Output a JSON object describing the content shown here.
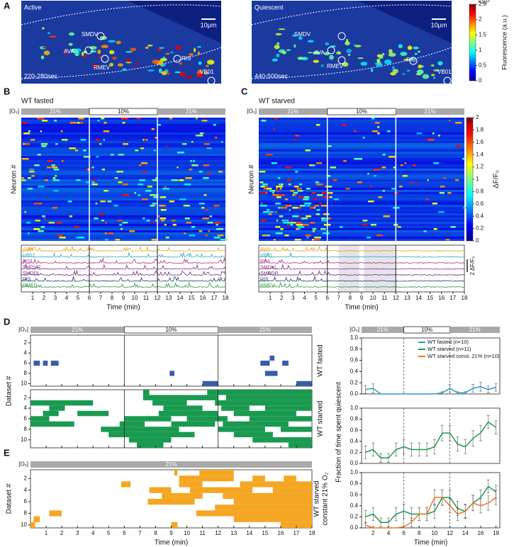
{
  "panel_a": {
    "label": "A",
    "images": [
      {
        "state": "Active",
        "time": "220-280sec",
        "scale": "10μm",
        "neurons": [
          "SMDV",
          "AVA",
          "RMEV",
          "RIS",
          "VB01"
        ]
      },
      {
        "state": "Quiescent",
        "time": "440-500sec",
        "scale": "10μm",
        "neurons": [
          "SMDV",
          "AVA",
          "RMEV",
          "RIS",
          "VB01"
        ]
      }
    ],
    "colorbar": {
      "multiplier": "×10⁴",
      "label": "Fluorescence (a.u.)",
      "lim": [
        0,
        2.5
      ],
      "ticks": [
        0,
        0.5,
        1,
        1.5,
        2,
        2.5
      ]
    }
  },
  "panel_b": {
    "label": "B",
    "title": "WT fasted",
    "o2_label": "[O₂]",
    "o2_segments": [
      {
        "label": "21%",
        "start": 0,
        "end": 6
      },
      {
        "label": "10%",
        "start": 6,
        "end": 12
      },
      {
        "label": "21%",
        "start": 12,
        "end": 18
      }
    ],
    "ylabel": "Neuron #",
    "xlabel": "Time (min)",
    "xlim": [
      0,
      18
    ],
    "xticks": [
      1,
      2,
      3,
      4,
      5,
      6,
      7,
      8,
      9,
      10,
      11,
      12,
      13,
      14,
      15,
      16,
      17,
      18
    ],
    "traces": [
      {
        "name": "AVAL",
        "color": "#e8a21c"
      },
      {
        "name": "VB02",
        "color": "#2aa9c4"
      },
      {
        "name": "RIVL",
        "color": "#b0307c"
      },
      {
        "name": "SMDVR",
        "color": "#8c2a8c"
      },
      {
        "name": "SMDDL",
        "color": "#6a2f7c"
      },
      {
        "name": "RIS",
        "color": "#23397a"
      },
      {
        "name": "RMED",
        "color": "#2a9a40"
      }
    ]
  },
  "panel_c": {
    "label": "C",
    "title": "WT starved",
    "o2_label": "[O₂]",
    "o2_segments": [
      {
        "label": "21%",
        "start": 0,
        "end": 6
      },
      {
        "label": "10%",
        "start": 6,
        "end": 12
      },
      {
        "label": "21%",
        "start": 12,
        "end": 18
      }
    ],
    "ylabel": "Neuron #",
    "xlabel": "Time (min)",
    "xlim": [
      0,
      18
    ],
    "xticks": [
      1,
      2,
      3,
      4,
      5,
      6,
      7,
      8,
      9,
      10,
      11,
      12,
      13,
      14,
      15,
      16,
      17,
      18
    ],
    "traces": [
      {
        "name": "AVAL",
        "color": "#e8a21c"
      },
      {
        "name": "VB01",
        "color": "#2aa9c4"
      },
      {
        "name": "RIVL",
        "color": "#b0307c"
      },
      {
        "name": "SMDVL",
        "color": "#8c2a8c"
      },
      {
        "name": "SMDDR",
        "color": "#6a2f7c"
      },
      {
        "name": "RIS",
        "color": "#23397a"
      },
      {
        "name": "RMEV",
        "color": "#2a9a40"
      }
    ],
    "scale_label": "2 ΔF/F₀",
    "colorbar": {
      "label": "ΔF/F₀",
      "lim": [
        0,
        2
      ],
      "ticks": [
        0,
        0.2,
        0.4,
        0.6,
        0.8,
        1,
        1.2,
        1.4,
        1.6,
        1.8,
        2
      ]
    }
  },
  "panel_d": {
    "label": "D",
    "o2_label": "[O₂]",
    "o2_segments": [
      {
        "label": "21%",
        "start": 0,
        "end": 6
      },
      {
        "label": "10%",
        "start": 6,
        "end": 12
      },
      {
        "label": "21%",
        "start": 12,
        "end": 18
      }
    ],
    "ylabel": "Dataset #",
    "xlim": [
      0,
      18
    ],
    "yticks": [
      2,
      4,
      6,
      8,
      10
    ],
    "fasted": {
      "label": "WT fasted",
      "color": "#3a5daa",
      "ylim": [
        0.5,
        10.5
      ],
      "blocks": [
        [
          6,
          0.2,
          0.6
        ],
        [
          6,
          0.8,
          1.1
        ],
        [
          6,
          1.3,
          1.8
        ],
        [
          8,
          8.9,
          9.2
        ],
        [
          10,
          11,
          12
        ],
        [
          5,
          15.3,
          15.6
        ],
        [
          6,
          14.7,
          15.3
        ],
        [
          6,
          16.1,
          16.5
        ],
        [
          8,
          15,
          15.8
        ],
        [
          10,
          17,
          18
        ]
      ]
    },
    "starved": {
      "label": "WT starved",
      "color": "#1a9a50",
      "ylim": [
        0.5,
        11.5
      ],
      "blocks": [
        [
          1,
          7.2,
          7.6
        ],
        [
          1,
          11.3,
          18
        ],
        [
          2,
          7.2,
          12
        ],
        [
          2,
          12.5,
          18
        ],
        [
          3,
          0,
          4
        ],
        [
          3,
          7.8,
          10
        ],
        [
          3,
          11.8,
          18
        ],
        [
          4,
          1.2,
          2.2
        ],
        [
          4,
          8.5,
          11
        ],
        [
          4,
          12.2,
          14
        ],
        [
          4,
          15,
          18
        ],
        [
          5,
          0.8,
          1.8
        ],
        [
          5,
          3,
          5
        ],
        [
          5,
          8.2,
          12
        ],
        [
          5,
          13,
          17
        ],
        [
          6,
          0,
          1.2
        ],
        [
          6,
          6,
          9
        ],
        [
          6,
          10,
          12.6
        ],
        [
          6,
          14,
          18
        ],
        [
          7,
          0,
          2.8
        ],
        [
          7,
          5.7,
          7.3
        ],
        [
          7,
          9,
          11.8
        ],
        [
          7,
          12.3,
          16.5
        ],
        [
          8,
          4.5,
          9.5
        ],
        [
          8,
          12,
          15
        ],
        [
          8,
          16,
          18
        ],
        [
          9,
          5,
          10.5
        ],
        [
          9,
          13,
          15.5
        ],
        [
          10,
          6.3,
          9
        ],
        [
          10,
          14.2,
          18
        ],
        [
          11,
          6.8,
          8.5
        ],
        [
          11,
          16.5,
          18
        ]
      ]
    }
  },
  "panel_e": {
    "label": "E",
    "o2_label": "[O₂]",
    "o2_segments": [
      {
        "label": "21%",
        "start": 0,
        "end": 18
      }
    ],
    "ylabel": "Dataset #",
    "xlabel": "Time (min)",
    "xlim": [
      0,
      18
    ],
    "ylim": [
      0.5,
      10.5
    ],
    "xticks": [
      1,
      2,
      3,
      4,
      5,
      6,
      7,
      8,
      9,
      10,
      11,
      12,
      13,
      14,
      15,
      16,
      17,
      18
    ],
    "yticks": [
      2,
      4,
      6,
      8,
      10
    ],
    "side_label": [
      "WT starved",
      "constant 21% O₂"
    ],
    "color": "#f5a623",
    "blocks": [
      [
        1,
        9.2,
        9.4
      ],
      [
        1,
        10.8,
        13
      ],
      [
        2,
        9.5,
        13
      ],
      [
        2,
        14.2,
        15
      ],
      [
        2,
        16.2,
        17
      ],
      [
        3,
        5.8,
        6.4
      ],
      [
        3,
        9.5,
        11
      ],
      [
        3,
        13.4,
        18
      ],
      [
        4,
        7.6,
        9
      ],
      [
        4,
        10.2,
        14.2
      ],
      [
        4,
        15.5,
        18
      ],
      [
        5,
        8.4,
        11
      ],
      [
        5,
        12.3,
        18
      ],
      [
        6,
        7.5,
        10.5
      ],
      [
        6,
        13,
        18
      ],
      [
        7,
        11.8,
        18
      ],
      [
        8,
        1.2,
        2
      ],
      [
        8,
        10.6,
        18
      ],
      [
        9,
        0.2,
        0.6
      ],
      [
        9,
        13,
        18
      ],
      [
        10,
        0,
        0.3
      ],
      [
        10,
        9,
        9.4
      ],
      [
        10,
        16,
        18
      ]
    ]
  },
  "chart_data": [
    {
      "type": "line",
      "o2_label": "[O₂]",
      "o2_segments": [
        {
          "label": "21%",
          "start": 0.5,
          "end": 6
        },
        {
          "label": "10%",
          "start": 6,
          "end": 12
        },
        {
          "label": "21%",
          "start": 12,
          "end": 18.5
        }
      ],
      "x": [
        1,
        2,
        3,
        4,
        5,
        6,
        7,
        8,
        9,
        10,
        11,
        12,
        13,
        14,
        15,
        16,
        17,
        18
      ],
      "xlim": [
        0.5,
        18.5
      ],
      "ylim": [
        0,
        1
      ],
      "yticks": [
        {
          "value": 0,
          "label": "0.0"
        },
        {
          "value": 0.2,
          "label": "0.2"
        },
        {
          "value": 0.4,
          "label": "0.4"
        },
        {
          "value": 0.6,
          "label": "0.6"
        },
        {
          "value": 0.8,
          "label": "0.8"
        },
        {
          "value": 1,
          "label": "1.0"
        }
      ],
      "o2_switch": [
        6,
        12
      ],
      "legend": "upper right",
      "series": [
        {
          "name": "WT fasted (n=10)",
          "color": "#2a9ac8",
          "values": [
            0.08,
            0.1,
            0,
            0,
            0,
            0,
            0,
            0,
            0,
            0,
            0.02,
            0.1,
            0.02,
            0.02,
            0.1,
            0.13,
            0.08,
            0.12
          ],
          "errors": [
            0.07,
            0.08,
            0,
            0,
            0,
            0,
            0,
            0,
            0,
            0,
            0.02,
            0.07,
            0.02,
            0.02,
            0.07,
            0.08,
            0.06,
            0.07
          ]
        }
      ]
    },
    {
      "type": "line",
      "ylabel": "Fraction of time spent quiescent",
      "x": [
        1,
        2,
        3,
        4,
        5,
        6,
        7,
        8,
        9,
        10,
        11,
        12,
        13,
        14,
        15,
        16,
        17,
        18
      ],
      "xlim": [
        0.5,
        18.5
      ],
      "ylim": [
        0,
        1
      ],
      "yticks": [
        {
          "value": 0,
          "label": "0.0"
        },
        {
          "value": 0.2,
          "label": "0.2"
        },
        {
          "value": 0.4,
          "label": "0.4"
        },
        {
          "value": 0.6,
          "label": "0.6"
        },
        {
          "value": 0.8,
          "label": "0.8"
        },
        {
          "value": 1,
          "label": "1.0"
        }
      ],
      "o2_switch": [
        6,
        12
      ],
      "series": [
        {
          "name": "WT starved (n=11)",
          "color": "#1a9a50",
          "values": [
            0.2,
            0.25,
            0.1,
            0.1,
            0.25,
            0.3,
            0.25,
            0.25,
            0.25,
            0.3,
            0.55,
            0.55,
            0.35,
            0.3,
            0.45,
            0.55,
            0.75,
            0.65
          ],
          "errors": [
            0.12,
            0.12,
            0.08,
            0.08,
            0.12,
            0.13,
            0.12,
            0.12,
            0.12,
            0.13,
            0.14,
            0.14,
            0.13,
            0.13,
            0.14,
            0.14,
            0.12,
            0.12
          ]
        }
      ]
    },
    {
      "type": "line",
      "xlabel": "Time (min)",
      "x": [
        1,
        2,
        3,
        4,
        5,
        6,
        7,
        8,
        9,
        10,
        11,
        12,
        13,
        14,
        15,
        16,
        17,
        18
      ],
      "xlim": [
        0.5,
        18.5
      ],
      "ylim": [
        0,
        1
      ],
      "xticks": [
        2,
        4,
        6,
        8,
        10,
        12,
        14,
        16,
        18
      ],
      "yticks": [
        {
          "value": 0,
          "label": "0.0"
        },
        {
          "value": 0.2,
          "label": "0.2"
        },
        {
          "value": 0.4,
          "label": "0.4"
        },
        {
          "value": 0.6,
          "label": "0.6"
        },
        {
          "value": 0.8,
          "label": "0.8"
        },
        {
          "value": 1,
          "label": "1.0"
        }
      ],
      "o2_switch": [
        6,
        12
      ],
      "series": [
        {
          "color": "#1a9a50",
          "values": [
            0.2,
            0.25,
            0.1,
            0.1,
            0.25,
            0.3,
            0.25,
            0.25,
            0.25,
            0.3,
            0.55,
            0.55,
            0.35,
            0.3,
            0.45,
            0.55,
            0.75,
            0.65
          ],
          "errors": [
            0.12,
            0.12,
            0.08,
            0.08,
            0.12,
            0.13,
            0.12,
            0.12,
            0.12,
            0.13,
            0.14,
            0.14,
            0.13,
            0.13,
            0.14,
            0.14,
            0.12,
            0.12
          ]
        },
        {
          "name": "WT starved const. 21% (n=10)",
          "color": "#f07820",
          "values": [
            0.05,
            0,
            0,
            0,
            0,
            0.02,
            0.1,
            0.25,
            0.25,
            0.55,
            0.55,
            0.4,
            0.25,
            0.3,
            0.45,
            0.4,
            0.45,
            0.55
          ],
          "errors": [
            0.05,
            0,
            0,
            0,
            0,
            0.02,
            0.08,
            0.12,
            0.12,
            0.14,
            0.14,
            0.13,
            0.12,
            0.12,
            0.14,
            0.13,
            0.13,
            0.13
          ]
        }
      ]
    }
  ]
}
